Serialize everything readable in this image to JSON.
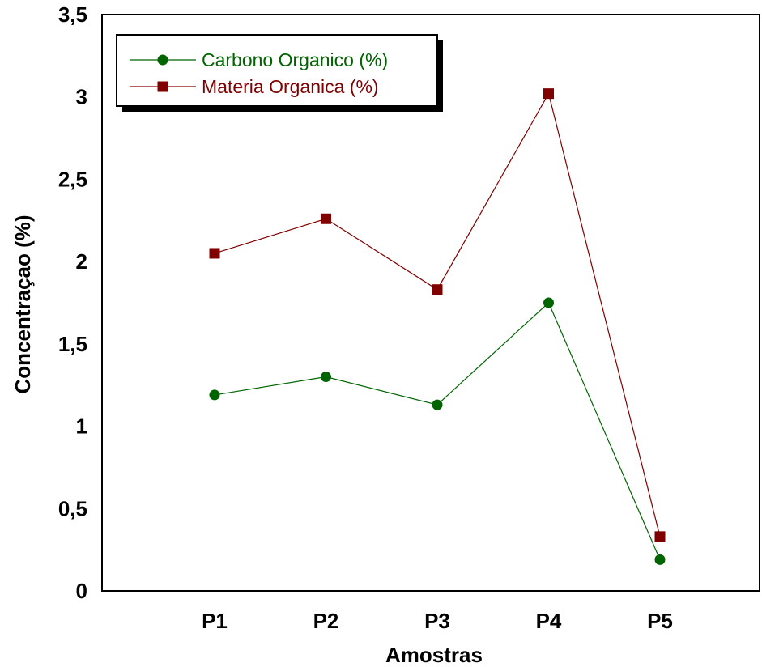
{
  "chart_data": {
    "type": "line",
    "title": "",
    "xlabel": "Amostras",
    "ylabel": "Concentraçao (%)",
    "categories": [
      "P1",
      "P2",
      "P3",
      "P4",
      "P5"
    ],
    "ylim": [
      0,
      3.5
    ],
    "yticks": [
      {
        "value": 0,
        "label": "0"
      },
      {
        "value": 0.5,
        "label": "0,5"
      },
      {
        "value": 1,
        "label": "1"
      },
      {
        "value": 1.5,
        "label": "1,5"
      },
      {
        "value": 2,
        "label": "2"
      },
      {
        "value": 2.5,
        "label": "2,5"
      },
      {
        "value": 3,
        "label": "3"
      },
      {
        "value": 3.5,
        "label": "3,5"
      }
    ],
    "grid": false,
    "legend_position": "top-left",
    "series": [
      {
        "name": "Carbono Organico (%)",
        "marker": "circle",
        "color": "#006400",
        "values": [
          1.19,
          1.3,
          1.13,
          1.75,
          0.19
        ]
      },
      {
        "name": "Materia Organica (%)",
        "marker": "square",
        "color": "#800000",
        "values": [
          2.05,
          2.26,
          1.83,
          3.02,
          0.33
        ]
      }
    ]
  }
}
